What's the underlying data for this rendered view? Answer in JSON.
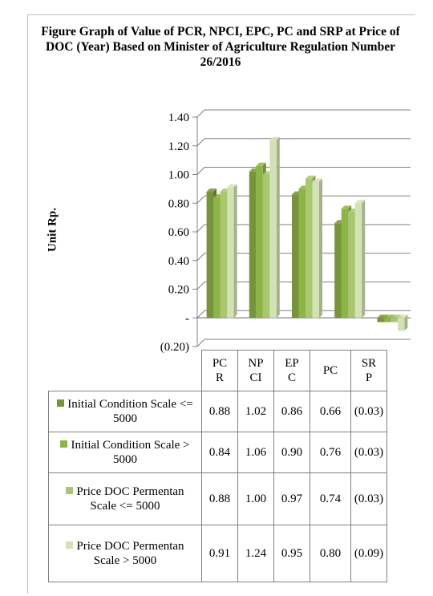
{
  "chart_data": {
    "type": "bar",
    "title": "Figure Graph of Value of PCR, NPCI, EPC, PC and SRP at Price of DOC (Year) Based on Minister of Agriculture Regulation Number 26/2016",
    "ylabel": "Unit Rp.",
    "xlabel": "",
    "ylim": [
      -0.2,
      1.4
    ],
    "yticks": [
      {
        "value": 1.4,
        "label": "1.40"
      },
      {
        "value": 1.2,
        "label": "1.20"
      },
      {
        "value": 1.0,
        "label": "1.00"
      },
      {
        "value": 0.8,
        "label": "0.80"
      },
      {
        "value": 0.6,
        "label": "0.60"
      },
      {
        "value": 0.4,
        "label": "0.40"
      },
      {
        "value": 0.2,
        "label": "0.20"
      },
      {
        "value": 0.0,
        "label": "-"
      },
      {
        "value": -0.2,
        "label": "(0.20)"
      }
    ],
    "categories": [
      "PCR",
      "NPCI",
      "EPC",
      "PC",
      "SRP"
    ],
    "category_labels": [
      [
        "PC",
        "R"
      ],
      [
        "NP",
        "CI"
      ],
      [
        "EP",
        "C"
      ],
      [
        "PC",
        ""
      ],
      [
        "SR",
        "P"
      ]
    ],
    "grid": true,
    "legend": "data-table",
    "series": [
      {
        "name": "Initial Condition Scale <= 5000",
        "color": "#77933c",
        "values": [
          0.88,
          1.02,
          0.86,
          0.66,
          -0.03
        ],
        "labels": [
          "0.88",
          "1.02",
          "0.86",
          "0.66",
          "(0.03)"
        ]
      },
      {
        "name": "Initial Condition Scale > 5000",
        "color": "#8db446",
        "values": [
          0.84,
          1.06,
          0.9,
          0.76,
          -0.03
        ],
        "labels": [
          "0.84",
          "1.06",
          "0.90",
          "0.76",
          "(0.03)"
        ]
      },
      {
        "name": "Price DOC Permentan Scale <= 5000",
        "color": "#a8c76e",
        "values": [
          0.88,
          1.0,
          0.97,
          0.74,
          -0.03
        ],
        "labels": [
          "0.88",
          "1.00",
          "0.97",
          "0.74",
          "(0.03)"
        ]
      },
      {
        "name": "Price DOC Permentan Scale > 5000",
        "color": "#d3e2b5",
        "values": [
          0.91,
          1.24,
          0.95,
          0.8,
          -0.09
        ],
        "labels": [
          "0.91",
          "1.24",
          "0.95",
          "0.80",
          "(0.09)"
        ]
      }
    ]
  }
}
